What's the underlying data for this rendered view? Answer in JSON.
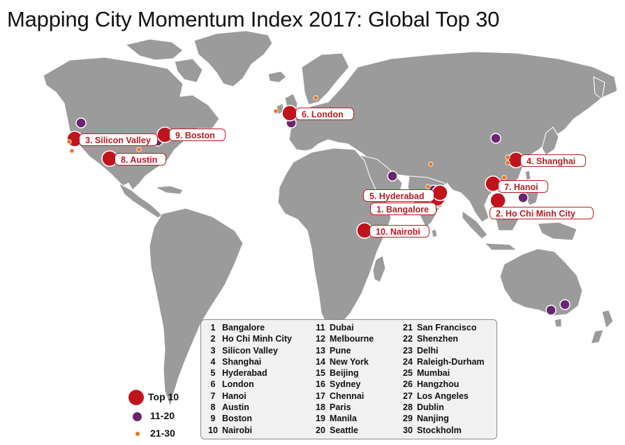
{
  "title": "Mapping City Momentum Index 2017: Global Top 30",
  "colors": {
    "top10": "#c0141c",
    "rank11_20": "#6a2570",
    "rank21_30": "#e8761e",
    "land": "#9b9b9b",
    "label_border": "#b81c22"
  },
  "map_labels": [
    {
      "text": "1. Bangalore",
      "rank": 1
    },
    {
      "text": "2. Ho Chi Minh City",
      "rank": 2
    },
    {
      "text": "3. Silicon Valley",
      "rank": 3
    },
    {
      "text": "4. Shanghai",
      "rank": 4
    },
    {
      "text": "5. Hyderabad",
      "rank": 5
    },
    {
      "text": "6. London",
      "rank": 6
    },
    {
      "text": "7. Hanoi",
      "rank": 7
    },
    {
      "text": "8. Austin",
      "rank": 8
    },
    {
      "text": "9. Boston",
      "rank": 9
    },
    {
      "text": "10. Nairobi",
      "rank": 10
    }
  ],
  "rankings": {
    "col1": [
      {
        "rank": "1",
        "city": "Bangalore"
      },
      {
        "rank": "2",
        "city": "Ho Chi Minh City"
      },
      {
        "rank": "3",
        "city": "Silicon Valley"
      },
      {
        "rank": "4",
        "city": "Shanghai"
      },
      {
        "rank": "5",
        "city": "Hyderabad"
      },
      {
        "rank": "6",
        "city": "London"
      },
      {
        "rank": "7",
        "city": "Hanoi"
      },
      {
        "rank": "8",
        "city": "Austin"
      },
      {
        "rank": "9",
        "city": "Boston"
      },
      {
        "rank": "10",
        "city": "Nairobi"
      }
    ],
    "col2": [
      {
        "rank": "11",
        "city": "Dubai"
      },
      {
        "rank": "12",
        "city": "Melbourne"
      },
      {
        "rank": "13",
        "city": "Pune"
      },
      {
        "rank": "14",
        "city": "New York"
      },
      {
        "rank": "15",
        "city": "Beijing"
      },
      {
        "rank": "16",
        "city": "Sydney"
      },
      {
        "rank": "17",
        "city": "Chennai"
      },
      {
        "rank": "18",
        "city": "Paris"
      },
      {
        "rank": "19",
        "city": "Manila"
      },
      {
        "rank": "20",
        "city": "Seattle"
      }
    ],
    "col3": [
      {
        "rank": "21",
        "city": "San Francisco"
      },
      {
        "rank": "22",
        "city": "Shenzhen"
      },
      {
        "rank": "23",
        "city": "Delhi"
      },
      {
        "rank": "24",
        "city": "Raleigh-Durham"
      },
      {
        "rank": "25",
        "city": "Mumbai"
      },
      {
        "rank": "26",
        "city": "Hangzhou"
      },
      {
        "rank": "27",
        "city": "Los Angeles"
      },
      {
        "rank": "28",
        "city": "Dublin"
      },
      {
        "rank": "29",
        "city": "Nanjing"
      },
      {
        "rank": "30",
        "city": "Stockholm"
      }
    ]
  },
  "key": {
    "top10": "Top 10",
    "rank11_20": "11-20",
    "rank21_30": "21-30"
  }
}
